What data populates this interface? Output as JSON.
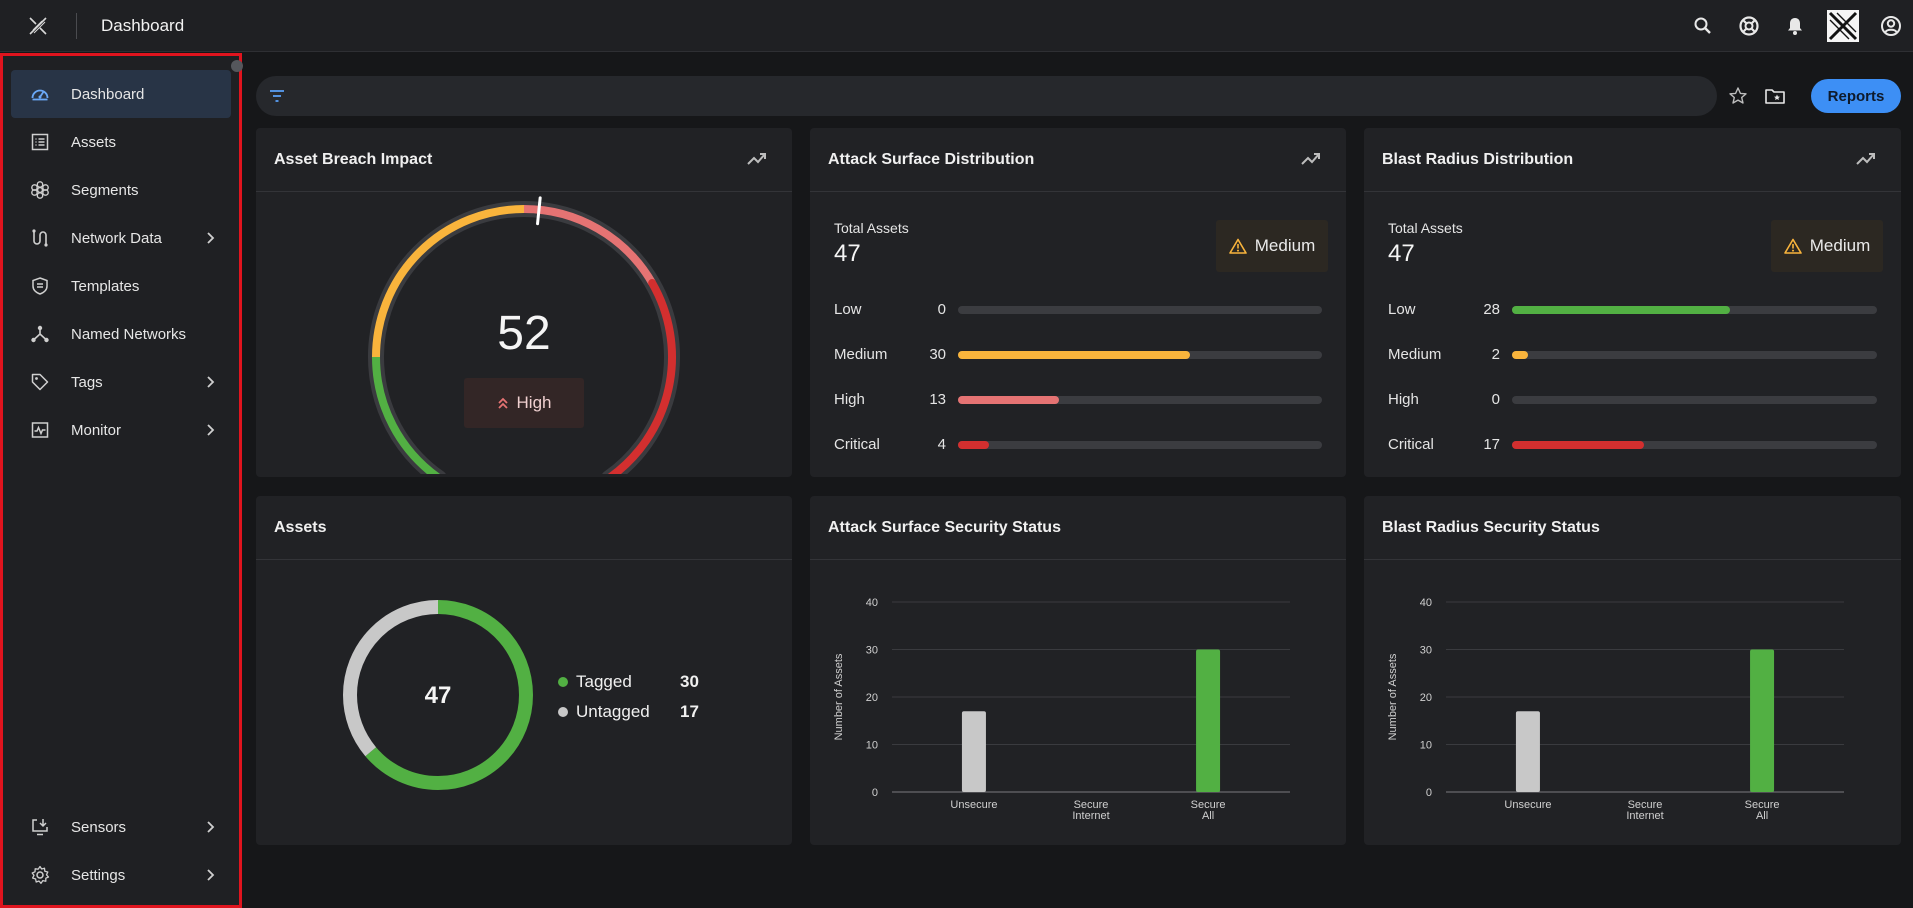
{
  "header": {
    "title": "Dashboard"
  },
  "sidebar": {
    "items": [
      {
        "label": "Dashboard",
        "icon": "dashboard-icon",
        "active": true
      },
      {
        "label": "Assets",
        "icon": "list-icon"
      },
      {
        "label": "Segments",
        "icon": "segments-icon"
      },
      {
        "label": "Network Data",
        "icon": "network-data-icon",
        "expandable": true
      },
      {
        "label": "Templates",
        "icon": "shield-icon"
      },
      {
        "label": "Named Networks",
        "icon": "named-networks-icon"
      },
      {
        "label": "Tags",
        "icon": "tag-icon",
        "expandable": true
      },
      {
        "label": "Monitor",
        "icon": "monitor-icon",
        "expandable": true
      }
    ],
    "bottom_items": [
      {
        "label": "Sensors",
        "icon": "sensors-icon",
        "expandable": true
      },
      {
        "label": "Settings",
        "icon": "gear-icon",
        "expandable": true
      }
    ]
  },
  "filter": {
    "placeholder": ""
  },
  "toolbar": {
    "reports_label": "Reports"
  },
  "cards": {
    "breach": {
      "title": "Asset Breach Impact",
      "value": "52",
      "level": "High",
      "score": 52
    },
    "attack_dist": {
      "title": "Attack Surface Distribution",
      "total_label": "Total Assets",
      "total": "47",
      "badge": "Medium",
      "rows": [
        {
          "label": "Low",
          "count": "0",
          "fraction": 0,
          "color": "#4caf50"
        },
        {
          "label": "Medium",
          "count": "30",
          "fraction": 0.638,
          "color": "#f9b43c"
        },
        {
          "label": "High",
          "count": "13",
          "fraction": 0.277,
          "color": "#e57373"
        },
        {
          "label": "Critical",
          "count": "4",
          "fraction": 0.085,
          "color": "#d32f2f"
        }
      ]
    },
    "blast_dist": {
      "title": "Blast Radius Distribution",
      "total_label": "Total Assets",
      "total": "47",
      "badge": "Medium",
      "rows": [
        {
          "label": "Low",
          "count": "28",
          "fraction": 0.596,
          "color": "#52b043"
        },
        {
          "label": "Medium",
          "count": "2",
          "fraction": 0.043,
          "color": "#f9b43c"
        },
        {
          "label": "High",
          "count": "0",
          "fraction": 0,
          "color": "#e57373"
        },
        {
          "label": "Critical",
          "count": "17",
          "fraction": 0.362,
          "color": "#d32f2f"
        }
      ]
    },
    "assets": {
      "title": "Assets",
      "total": "47",
      "legend": [
        {
          "label": "Tagged",
          "value": "30",
          "color": "#52b043"
        },
        {
          "label": "Untagged",
          "value": "17",
          "color": "#c8c8c8"
        }
      ]
    },
    "attack_status": {
      "title": "Attack Surface Security Status"
    },
    "blast_status": {
      "title": "Blast Radius Security Status"
    }
  },
  "chart_data": [
    {
      "type": "bar",
      "title": "Attack Surface Security Status",
      "categories": [
        "Unsecure",
        "Secure Internet",
        "Secure All"
      ],
      "values": [
        17,
        0,
        30
      ],
      "colors": [
        "#c8c8c8",
        "#52b043",
        "#52b043"
      ],
      "ylabel": "Number of Assets",
      "yticks": [
        0,
        10,
        20,
        30,
        40
      ],
      "ylim": [
        0,
        40
      ]
    },
    {
      "type": "bar",
      "title": "Blast Radius Security Status",
      "categories": [
        "Unsecure",
        "Secure Internet",
        "Secure All"
      ],
      "values": [
        17,
        0,
        30
      ],
      "colors": [
        "#c8c8c8",
        "#52b043",
        "#52b043"
      ],
      "ylabel": "Number of Assets",
      "yticks": [
        0,
        10,
        20,
        30,
        40
      ],
      "ylim": [
        0,
        40
      ]
    }
  ]
}
